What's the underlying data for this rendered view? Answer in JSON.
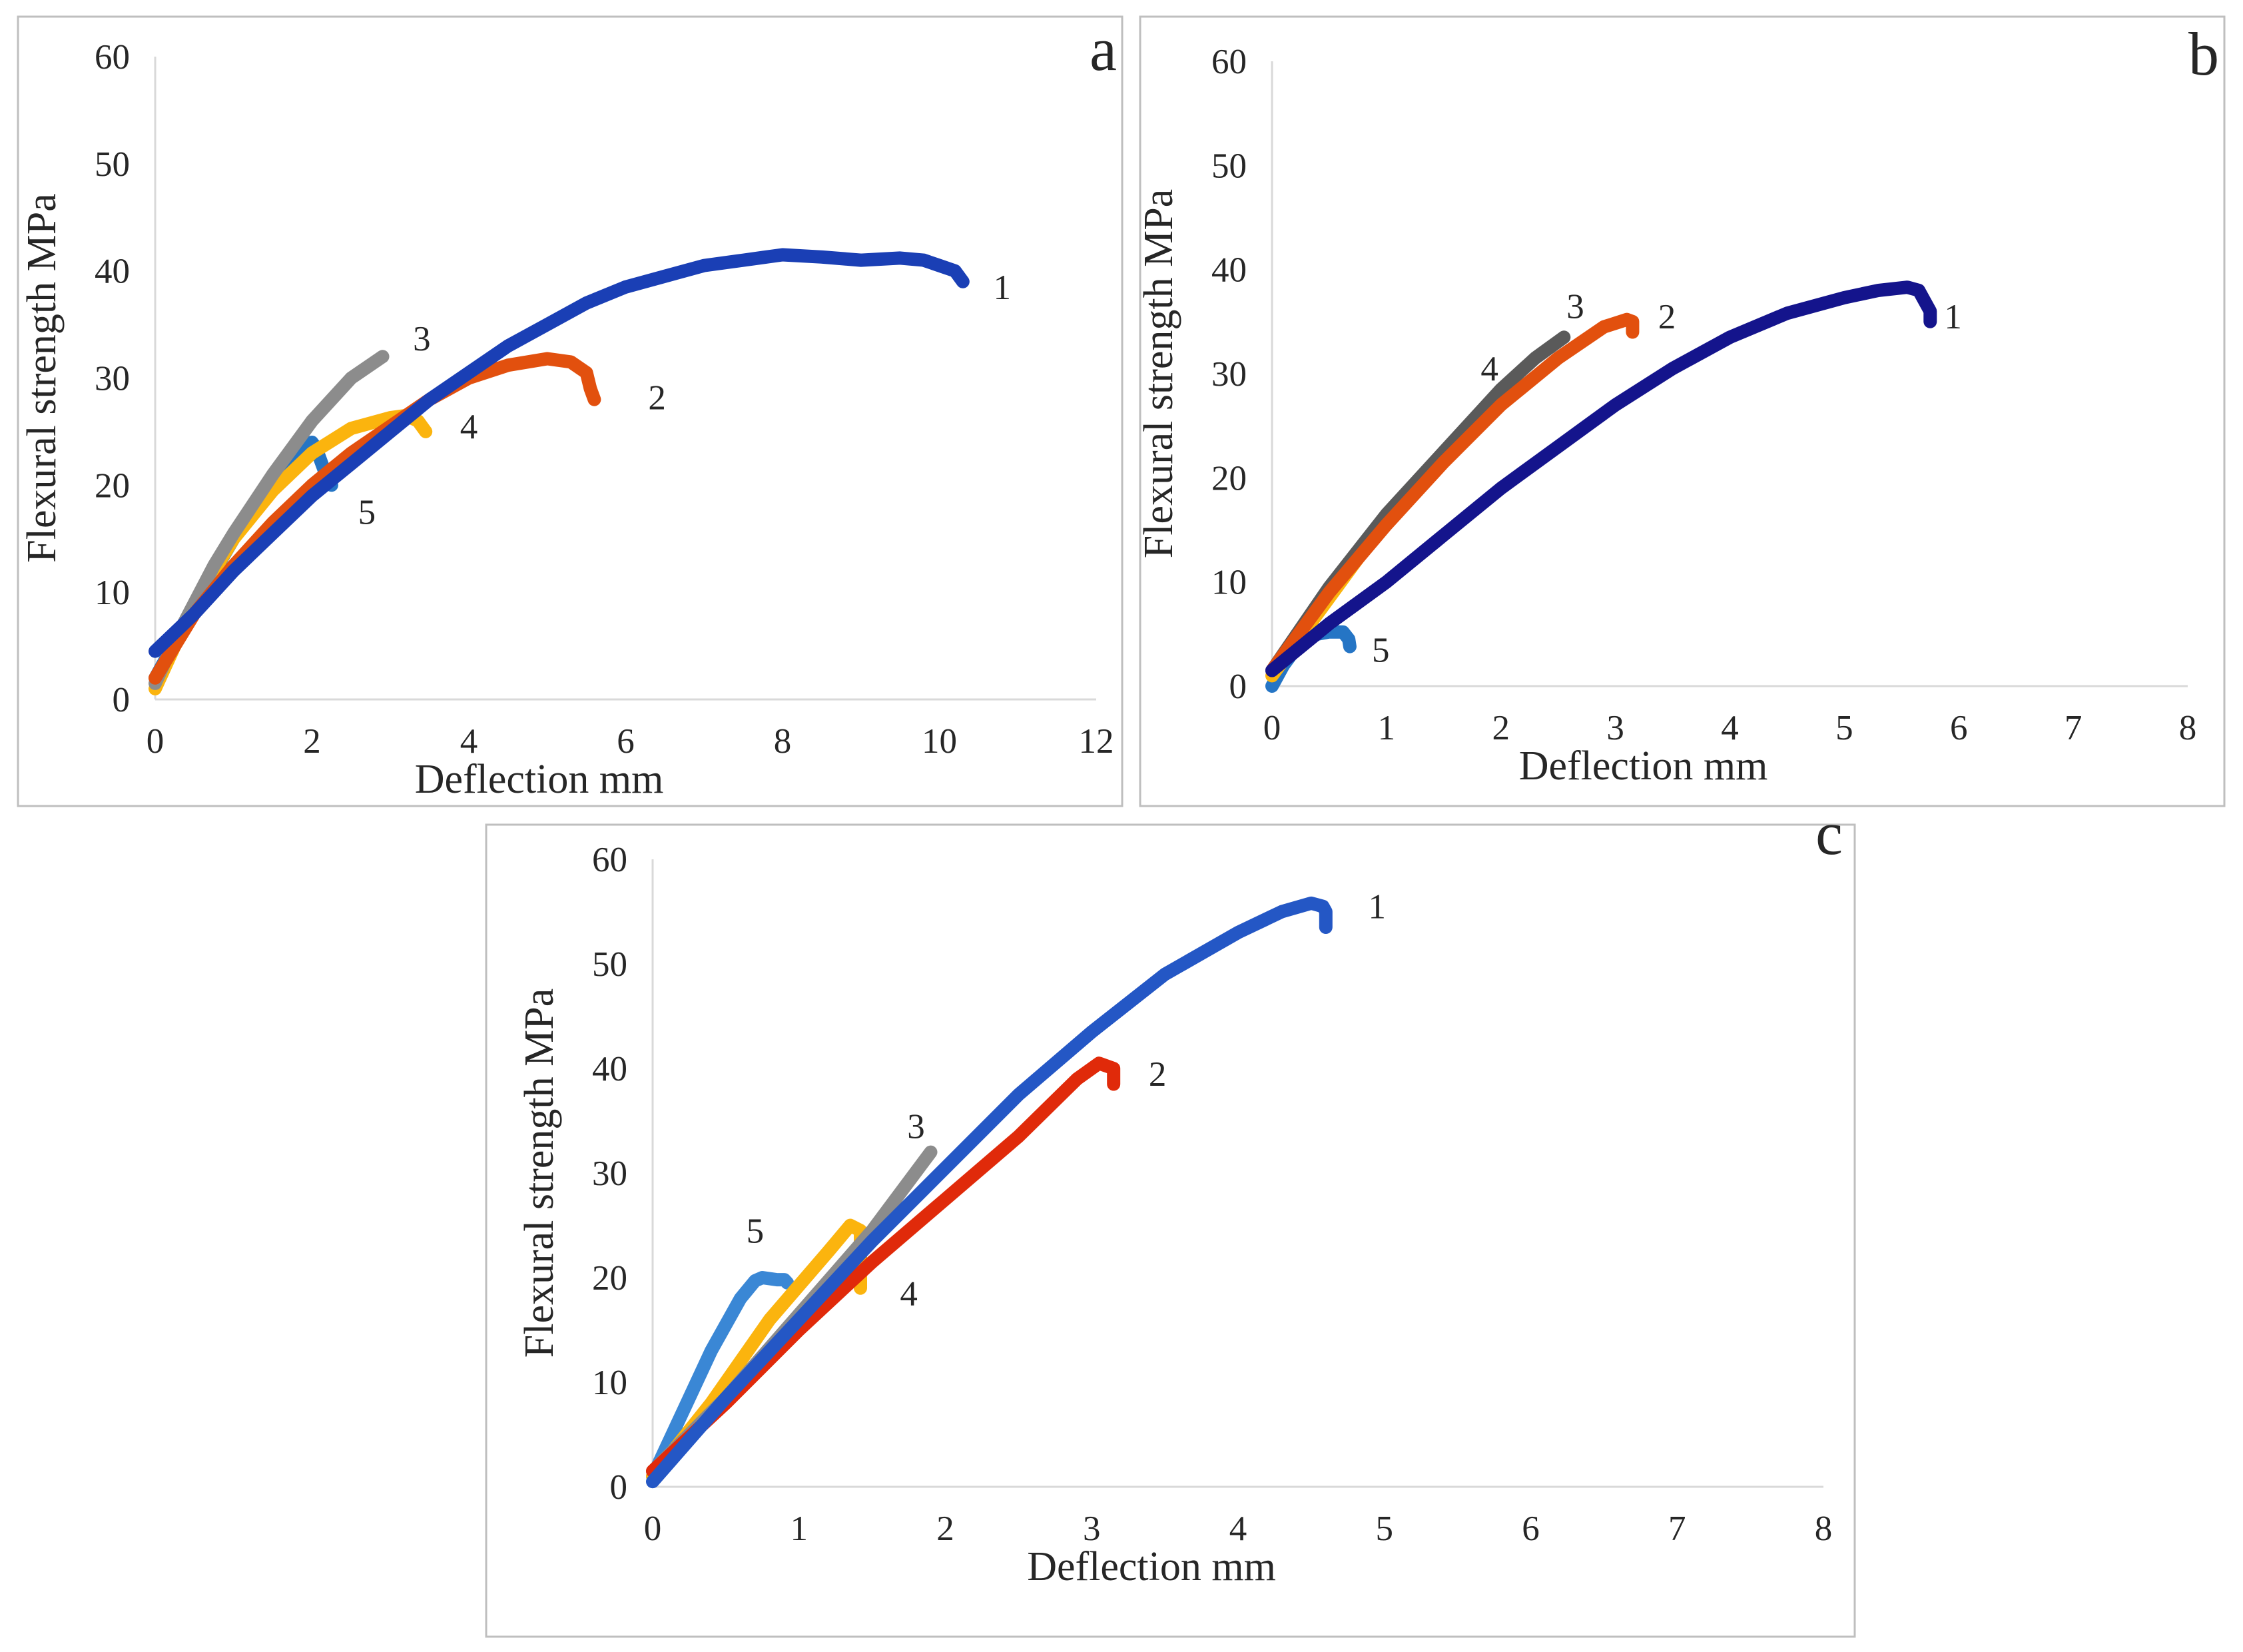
{
  "chart_data": [
    {
      "panel": "a",
      "type": "line",
      "title": "",
      "xlabel": "Deflection mm",
      "ylabel": "Flexural strength MPa",
      "xlim": [
        0,
        12
      ],
      "ylim": [
        0,
        60
      ],
      "x_ticks": [
        0,
        2,
        4,
        6,
        8,
        10,
        12
      ],
      "y_ticks": [
        0,
        10,
        20,
        30,
        40,
        50,
        60
      ],
      "grid": false,
      "legend": "none; curves numbered 1-5 at their ends",
      "series": [
        {
          "name": "1",
          "color": "#1a3fb5",
          "x": [
            0,
            0.5,
            1,
            1.5,
            2,
            2.5,
            3,
            3.5,
            4,
            4.5,
            5,
            5.5,
            6,
            6.5,
            7,
            7.5,
            8,
            8.5,
            9,
            9.5,
            9.8,
            10.0,
            10.2,
            10.3
          ],
          "y": [
            4.5,
            8,
            12,
            15.5,
            19,
            22,
            25,
            28,
            30.5,
            33,
            35,
            37,
            38.5,
            39.5,
            40.5,
            41,
            41.5,
            41.3,
            41,
            41.2,
            41,
            40.5,
            40,
            39
          ]
        },
        {
          "name": "2",
          "color": "#e2500e",
          "x": [
            0,
            0.5,
            1,
            1.5,
            2,
            2.5,
            3,
            3.5,
            4,
            4.5,
            5,
            5.3,
            5.5,
            5.55,
            5.6
          ],
          "y": [
            2,
            8,
            12.5,
            16.5,
            20,
            23,
            25.5,
            28,
            30,
            31.2,
            31.8,
            31.5,
            30.5,
            29,
            28
          ]
        },
        {
          "name": "3",
          "color": "#8c8c8c",
          "x": [
            0,
            0.25,
            0.5,
            0.75,
            1,
            1.5,
            2,
            2.5,
            2.9
          ],
          "y": [
            1.5,
            5.5,
            9,
            12.5,
            15.5,
            21,
            26,
            30,
            32
          ]
        },
        {
          "name": "4",
          "color": "#fbb40e",
          "x": [
            0,
            0.25,
            0.5,
            0.75,
            1,
            1.5,
            2,
            2.5,
            3,
            3.2,
            3.35,
            3.45
          ],
          "y": [
            1,
            5,
            8.5,
            12,
            15,
            19.5,
            23,
            25.3,
            26.3,
            26.5,
            26,
            25
          ]
        },
        {
          "name": "5",
          "color": "#2575c5",
          "x": [
            0,
            0.3,
            0.6,
            1,
            1.4,
            1.7,
            1.9,
            2.0,
            2.05,
            2.1,
            2.15,
            2.2,
            2.25
          ],
          "y": [
            2,
            6,
            10,
            15,
            19.5,
            22.5,
            23.8,
            24,
            23.5,
            22.5,
            21.5,
            20.5,
            20
          ]
        }
      ],
      "curve_labels": [
        {
          "text": "1",
          "x": 10.8,
          "y": 38.5
        },
        {
          "text": "2",
          "x": 6.4,
          "y": 28.2
        },
        {
          "text": "3",
          "x": 3.4,
          "y": 33.7
        },
        {
          "text": "4",
          "x": 4.0,
          "y": 25.5
        },
        {
          "text": "5",
          "x": 2.7,
          "y": 17.5
        }
      ]
    },
    {
      "panel": "b",
      "type": "line",
      "title": "",
      "xlabel": "Deflection mm",
      "ylabel": "Flexural strength MPa",
      "xlim": [
        0,
        8
      ],
      "ylim": [
        0,
        60
      ],
      "x_ticks": [
        0,
        1,
        2,
        3,
        4,
        5,
        6,
        7,
        8
      ],
      "y_ticks": [
        0,
        10,
        20,
        30,
        40,
        50,
        60
      ],
      "grid": false,
      "legend": "none; curves numbered 1-5 at their ends",
      "series": [
        {
          "name": "1",
          "color": "#14148c",
          "x": [
            0,
            0.5,
            1,
            1.5,
            2,
            2.5,
            3,
            3.5,
            4,
            4.5,
            5,
            5.3,
            5.55,
            5.65,
            5.7,
            5.75,
            5.75
          ],
          "y": [
            1.5,
            6,
            10,
            14.5,
            19,
            23,
            27,
            30.5,
            33.5,
            35.8,
            37.3,
            38,
            38.3,
            38,
            37,
            36,
            35
          ]
        },
        {
          "name": "2",
          "color": "#e2500e",
          "x": [
            0,
            0.5,
            1,
            1.5,
            2,
            2.5,
            2.9,
            3.1,
            3.15,
            3.15
          ],
          "y": [
            1.5,
            9,
            15.5,
            21.5,
            27,
            31.5,
            34.5,
            35.2,
            35,
            34
          ]
        },
        {
          "name": "3",
          "color": "#5a5a5a",
          "x": [
            0,
            0.5,
            1,
            1.5,
            2,
            2.3,
            2.55
          ],
          "y": [
            1.5,
            9.5,
            16.5,
            22.5,
            28.5,
            31.5,
            33.5
          ]
        },
        {
          "name": "4",
          "color": "#fbb40e",
          "x": [
            0,
            0.4,
            0.8,
            1.2,
            1.6,
            2.0
          ],
          "y": [
            1,
            7,
            13,
            18.5,
            23.5,
            28
          ]
        },
        {
          "name": "5",
          "color": "#2575c5",
          "x": [
            0,
            0.1,
            0.2,
            0.3,
            0.4,
            0.5,
            0.62,
            0.67,
            0.68
          ],
          "y": [
            0,
            2,
            3.5,
            4.5,
            5,
            5.2,
            5.2,
            4.5,
            3.8
          ]
        }
      ],
      "curve_labels": [
        {
          "text": "1",
          "x": 5.95,
          "y": 35.5
        },
        {
          "text": "2",
          "x": 3.45,
          "y": 35.5
        },
        {
          "text": "3",
          "x": 2.65,
          "y": 36.5
        },
        {
          "text": "4",
          "x": 1.9,
          "y": 30.5
        },
        {
          "text": "5",
          "x": 0.95,
          "y": 3.5
        }
      ]
    },
    {
      "panel": "c",
      "type": "line",
      "title": "",
      "xlabel": "Deflection mm",
      "ylabel": "Flexural strength MPa",
      "xlim": [
        0,
        8
      ],
      "ylim": [
        0,
        60
      ],
      "x_ticks": [
        0,
        1,
        2,
        3,
        4,
        5,
        6,
        7,
        8
      ],
      "y_ticks": [
        0,
        10,
        20,
        30,
        40,
        50,
        60
      ],
      "grid": false,
      "legend": "none; curves numbered 1-5 at their ends",
      "series": [
        {
          "name": "1",
          "color": "#2457c5",
          "x": [
            0,
            0.5,
            1,
            1.5,
            2,
            2.5,
            3,
            3.5,
            4,
            4.3,
            4.5,
            4.58,
            4.6,
            4.6
          ],
          "y": [
            0.5,
            8.5,
            16,
            23.5,
            30.5,
            37.5,
            43.5,
            49,
            53,
            55,
            55.8,
            55.5,
            55,
            53.5
          ]
        },
        {
          "name": "2",
          "color": "#e02a0a",
          "x": [
            0,
            0.5,
            1,
            1.5,
            2,
            2.5,
            2.9,
            3.05,
            3.15,
            3.15
          ],
          "y": [
            1.5,
            8,
            15,
            21.5,
            27.5,
            33.5,
            39,
            40.5,
            40,
            38.5
          ]
        },
        {
          "name": "3",
          "color": "#8c8c8c",
          "x": [
            0,
            0.5,
            1,
            1.5,
            1.9
          ],
          "y": [
            1.5,
            8.5,
            16.5,
            24.5,
            32
          ]
        },
        {
          "name": "4",
          "color": "#fbb40e",
          "x": [
            0,
            0.4,
            0.8,
            1.2,
            1.35,
            1.42,
            1.42,
            1.42
          ],
          "y": [
            1,
            8,
            16,
            22.5,
            25,
            24.5,
            22,
            19
          ]
        },
        {
          "name": "5",
          "color": "#3a87d5",
          "x": [
            0,
            0.2,
            0.4,
            0.6,
            0.7,
            0.75,
            0.85,
            0.9,
            0.92
          ],
          "y": [
            1,
            7,
            13,
            18,
            19.7,
            20,
            19.8,
            19.8,
            19.5
          ]
        }
      ],
      "curve_labels": [
        {
          "text": "1",
          "x": 4.95,
          "y": 55.5
        },
        {
          "text": "2",
          "x": 3.45,
          "y": 39.5
        },
        {
          "text": "3",
          "x": 1.8,
          "y": 34.5
        },
        {
          "text": "4",
          "x": 1.75,
          "y": 18.5
        },
        {
          "text": "5",
          "x": 0.7,
          "y": 24.5
        }
      ]
    }
  ]
}
